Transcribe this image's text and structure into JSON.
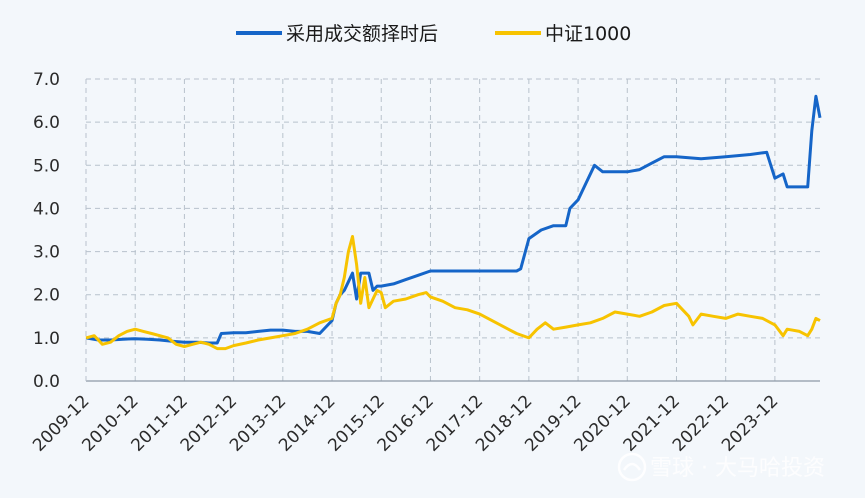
{
  "chart_data": {
    "type": "line",
    "title": "",
    "xlabel": "",
    "ylabel": "",
    "ylim": [
      0,
      7
    ],
    "yticks": [
      "0.0",
      "1.0",
      "2.0",
      "3.0",
      "4.0",
      "5.0",
      "6.0",
      "7.0"
    ],
    "xticks": [
      "2009-12",
      "2010-12",
      "2011-12",
      "2012-12",
      "2013-12",
      "2014-12",
      "2015-12",
      "2016-12",
      "2017-12",
      "2018-12",
      "2019-12",
      "2020-12",
      "2021-12",
      "2022-12",
      "2023-12"
    ],
    "grid": true,
    "legend_position": "top",
    "series": [
      {
        "name": "采用成交额择时后",
        "color": "#1565c8",
        "points": [
          [
            "2009-12",
            1.0
          ],
          [
            "2010-03",
            0.95
          ],
          [
            "2010-06",
            0.95
          ],
          [
            "2010-09",
            0.97
          ],
          [
            "2010-12",
            0.98
          ],
          [
            "2011-03",
            0.97
          ],
          [
            "2011-06",
            0.95
          ],
          [
            "2011-09",
            0.92
          ],
          [
            "2011-12",
            0.9
          ],
          [
            "2012-03",
            0.9
          ],
          [
            "2012-06",
            0.88
          ],
          [
            "2012-08",
            0.88
          ],
          [
            "2012-09",
            1.1
          ],
          [
            "2012-12",
            1.12
          ],
          [
            "2013-03",
            1.12
          ],
          [
            "2013-06",
            1.15
          ],
          [
            "2013-09",
            1.18
          ],
          [
            "2013-12",
            1.18
          ],
          [
            "2014-03",
            1.15
          ],
          [
            "2014-06",
            1.15
          ],
          [
            "2014-09",
            1.1
          ],
          [
            "2014-11",
            1.3
          ],
          [
            "2014-12",
            1.4
          ],
          [
            "2015-01",
            1.8
          ],
          [
            "2015-02",
            2.0
          ],
          [
            "2015-03",
            2.1
          ],
          [
            "2015-04",
            2.3
          ],
          [
            "2015-05",
            2.5
          ],
          [
            "2015-06",
            1.9
          ],
          [
            "2015-07",
            2.5
          ],
          [
            "2015-08",
            2.5
          ],
          [
            "2015-09",
            2.5
          ],
          [
            "2015-10",
            2.1
          ],
          [
            "2015-11",
            2.2
          ],
          [
            "2015-12",
            2.2
          ],
          [
            "2016-03",
            2.25
          ],
          [
            "2016-06",
            2.35
          ],
          [
            "2016-09",
            2.45
          ],
          [
            "2016-12",
            2.55
          ],
          [
            "2017-06",
            2.55
          ],
          [
            "2017-12",
            2.55
          ],
          [
            "2018-06",
            2.55
          ],
          [
            "2018-09",
            2.55
          ],
          [
            "2018-10",
            2.6
          ],
          [
            "2018-12",
            3.3
          ],
          [
            "2019-03",
            3.5
          ],
          [
            "2019-06",
            3.6
          ],
          [
            "2019-09",
            3.6
          ],
          [
            "2019-10",
            4.0
          ],
          [
            "2019-12",
            4.2
          ],
          [
            "2020-02",
            4.6
          ],
          [
            "2020-04",
            5.0
          ],
          [
            "2020-06",
            4.85
          ],
          [
            "2020-12",
            4.85
          ],
          [
            "2021-03",
            4.9
          ],
          [
            "2021-06",
            5.05
          ],
          [
            "2021-09",
            5.2
          ],
          [
            "2021-12",
            5.2
          ],
          [
            "2022-06",
            5.15
          ],
          [
            "2022-12",
            5.2
          ],
          [
            "2023-06",
            5.25
          ],
          [
            "2023-10",
            5.3
          ],
          [
            "2023-12",
            4.7
          ],
          [
            "2024-02",
            4.8
          ],
          [
            "2024-03",
            4.5
          ],
          [
            "2024-06",
            4.5
          ],
          [
            "2024-08",
            4.5
          ],
          [
            "2024-09",
            5.8
          ],
          [
            "2024-10",
            6.6
          ],
          [
            "2024-11",
            6.1
          ]
        ]
      },
      {
        "name": "中证1000",
        "color": "#f7c300",
        "points": [
          [
            "2009-12",
            1.0
          ],
          [
            "2010-02",
            1.05
          ],
          [
            "2010-04",
            0.85
          ],
          [
            "2010-06",
            0.9
          ],
          [
            "2010-08",
            1.05
          ],
          [
            "2010-10",
            1.15
          ],
          [
            "2010-12",
            1.2
          ],
          [
            "2011-02",
            1.15
          ],
          [
            "2011-04",
            1.1
          ],
          [
            "2011-06",
            1.05
          ],
          [
            "2011-08",
            1.0
          ],
          [
            "2011-10",
            0.85
          ],
          [
            "2011-12",
            0.8
          ],
          [
            "2012-02",
            0.85
          ],
          [
            "2012-04",
            0.9
          ],
          [
            "2012-06",
            0.85
          ],
          [
            "2012-08",
            0.75
          ],
          [
            "2012-10",
            0.75
          ],
          [
            "2012-12",
            0.82
          ],
          [
            "2013-03",
            0.88
          ],
          [
            "2013-06",
            0.95
          ],
          [
            "2013-09",
            1.0
          ],
          [
            "2013-12",
            1.05
          ],
          [
            "2014-03",
            1.1
          ],
          [
            "2014-06",
            1.2
          ],
          [
            "2014-09",
            1.35
          ],
          [
            "2014-12",
            1.45
          ],
          [
            "2015-01",
            1.8
          ],
          [
            "2015-02",
            2.0
          ],
          [
            "2015-03",
            2.4
          ],
          [
            "2015-04",
            3.0
          ],
          [
            "2015-05",
            3.35
          ],
          [
            "2015-06",
            2.7
          ],
          [
            "2015-07",
            1.8
          ],
          [
            "2015-08",
            2.4
          ],
          [
            "2015-09",
            1.7
          ],
          [
            "2015-10",
            1.9
          ],
          [
            "2015-11",
            2.1
          ],
          [
            "2015-12",
            2.05
          ],
          [
            "2016-01",
            1.7
          ],
          [
            "2016-03",
            1.85
          ],
          [
            "2016-06",
            1.9
          ],
          [
            "2016-09",
            2.0
          ],
          [
            "2016-11",
            2.05
          ],
          [
            "2016-12",
            1.95
          ],
          [
            "2017-03",
            1.85
          ],
          [
            "2017-06",
            1.7
          ],
          [
            "2017-09",
            1.65
          ],
          [
            "2017-12",
            1.55
          ],
          [
            "2018-03",
            1.4
          ],
          [
            "2018-06",
            1.25
          ],
          [
            "2018-09",
            1.1
          ],
          [
            "2018-12",
            1.0
          ],
          [
            "2019-02",
            1.2
          ],
          [
            "2019-04",
            1.35
          ],
          [
            "2019-06",
            1.2
          ],
          [
            "2019-09",
            1.25
          ],
          [
            "2019-12",
            1.3
          ],
          [
            "2020-03",
            1.35
          ],
          [
            "2020-06",
            1.45
          ],
          [
            "2020-09",
            1.6
          ],
          [
            "2020-12",
            1.55
          ],
          [
            "2021-03",
            1.5
          ],
          [
            "2021-06",
            1.6
          ],
          [
            "2021-09",
            1.75
          ],
          [
            "2021-12",
            1.8
          ],
          [
            "2022-03",
            1.5
          ],
          [
            "2022-04",
            1.3
          ],
          [
            "2022-06",
            1.55
          ],
          [
            "2022-09",
            1.5
          ],
          [
            "2022-12",
            1.45
          ],
          [
            "2023-03",
            1.55
          ],
          [
            "2023-06",
            1.5
          ],
          [
            "2023-09",
            1.45
          ],
          [
            "2023-12",
            1.3
          ],
          [
            "2024-02",
            1.05
          ],
          [
            "2024-03",
            1.2
          ],
          [
            "2024-06",
            1.15
          ],
          [
            "2024-08",
            1.05
          ],
          [
            "2024-09",
            1.2
          ],
          [
            "2024-10",
            1.45
          ],
          [
            "2024-11",
            1.4
          ]
        ]
      }
    ]
  },
  "watermark": {
    "text": "雪球 · 大马哈投资",
    "icon": "snowball-logo-icon"
  }
}
